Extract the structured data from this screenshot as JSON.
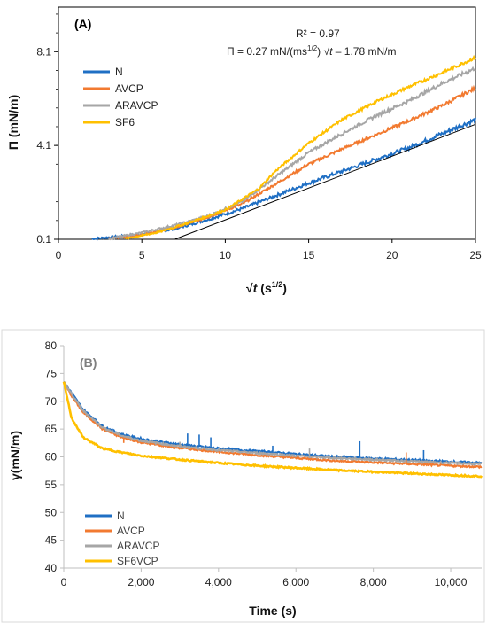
{
  "chart_data": [
    {
      "type": "line",
      "panel_label": "(A)",
      "xlabel_prefix": "√",
      "xlabel_var": "t",
      "xlabel_unit_open": " (s",
      "xlabel_unit_sup": "1/2",
      "xlabel_unit_close": ")",
      "ylabel": "Π (mN/m)",
      "xlim": [
        0,
        25
      ],
      "ylim": [
        0.1,
        10.0
      ],
      "x_ticks": [
        "0",
        "5",
        "10",
        "15",
        "20",
        "25"
      ],
      "y_ticks": [
        "0.1",
        "4.1",
        "8.1"
      ],
      "y_tick_values": [
        0.1,
        4.1,
        8.1
      ],
      "annotation_r2": "R² = 0.97",
      "annotation_fit": "Π = 0.27 mN/(ms^1/2) √t – 1.78 mN/m",
      "annotation_fit_parts": [
        "Π = 0.27 mN/(ms",
        "1/2",
        ") √",
        "t",
        " – 1.78 mN/m"
      ],
      "legend_position": "top-left",
      "fit_line": {
        "x": [
          7.0,
          25.0
        ],
        "y": [
          0.11,
          5.0
        ]
      },
      "series": [
        {
          "name": "N",
          "color": "#1f6fc4",
          "x": [
            2,
            5,
            7,
            9,
            11,
            13,
            15,
            17,
            19,
            21,
            23,
            25
          ],
          "y": [
            0.12,
            0.3,
            0.55,
            0.95,
            1.4,
            1.95,
            2.5,
            3.0,
            3.5,
            4.0,
            4.6,
            5.2
          ]
        },
        {
          "name": "AVCP",
          "color": "#f27a30",
          "x": [
            3,
            5,
            7,
            9,
            11,
            13,
            15,
            17,
            19,
            21,
            23,
            25
          ],
          "y": [
            0.12,
            0.3,
            0.6,
            1.05,
            1.6,
            2.45,
            3.3,
            3.95,
            4.55,
            5.15,
            5.8,
            6.55
          ]
        },
        {
          "name": "ARAVCP",
          "color": "#a6a6a6",
          "x": [
            3,
            5,
            7,
            9,
            11,
            13,
            15,
            17,
            19,
            21,
            23,
            25
          ],
          "y": [
            0.12,
            0.38,
            0.7,
            1.1,
            1.7,
            2.75,
            3.8,
            4.6,
            5.35,
            6.0,
            6.75,
            7.4
          ]
        },
        {
          "name": "SF6",
          "color": "#ffc000",
          "x": [
            4,
            6,
            8,
            10,
            12,
            13,
            15,
            17,
            19,
            21,
            23,
            25
          ],
          "y": [
            0.12,
            0.4,
            0.85,
            1.35,
            2.25,
            3.0,
            4.2,
            5.2,
            5.95,
            6.6,
            7.2,
            7.85
          ]
        }
      ]
    },
    {
      "type": "line",
      "panel_label": "(B)",
      "xlabel": "Time (s)",
      "ylabel": "γ(mN/m)",
      "xlim": [
        0,
        10800
      ],
      "ylim": [
        40,
        80
      ],
      "x_ticks": [
        "0",
        "2,000",
        "4,000",
        "6,000",
        "8,000",
        "10,000"
      ],
      "x_tick_values": [
        0,
        2000,
        4000,
        6000,
        8000,
        10000
      ],
      "y_ticks": [
        "40",
        "45",
        "50",
        "55",
        "60",
        "65",
        "70",
        "75",
        "80"
      ],
      "y_tick_values": [
        40,
        45,
        50,
        55,
        60,
        65,
        70,
        75,
        80
      ],
      "legend_position": "bottom-left",
      "series": [
        {
          "name": "N",
          "color": "#1f6fc4",
          "x": [
            0,
            200,
            500,
            1000,
            1500,
            2000,
            3000,
            4000,
            5000,
            6000,
            7000,
            8000,
            9000,
            10000,
            10800
          ],
          "y": [
            73.5,
            71.5,
            68.5,
            65.5,
            64.0,
            63.2,
            62.2,
            61.5,
            61.0,
            60.5,
            60.0,
            59.7,
            59.4,
            59.1,
            58.9
          ]
        },
        {
          "name": "AVCP",
          "color": "#f27a30",
          "x": [
            0,
            200,
            500,
            1000,
            1500,
            2000,
            3000,
            4000,
            5000,
            6000,
            7000,
            8000,
            9000,
            10000,
            10800
          ],
          "y": [
            73.5,
            71.0,
            68.0,
            65.0,
            63.5,
            62.6,
            61.6,
            60.9,
            60.3,
            59.8,
            59.3,
            59.0,
            58.7,
            58.4,
            58.2
          ]
        },
        {
          "name": "ARAVCP",
          "color": "#a6a6a6",
          "x": [
            0,
            200,
            500,
            1000,
            1500,
            2000,
            3000,
            4000,
            5000,
            6000,
            7000,
            8000,
            9000,
            10000,
            10800
          ],
          "y": [
            73.5,
            71.3,
            68.3,
            65.3,
            63.8,
            62.9,
            61.9,
            61.2,
            60.7,
            60.2,
            59.8,
            59.5,
            59.2,
            58.9,
            58.7
          ]
        },
        {
          "name": "SF6VCP",
          "color": "#ffc000",
          "x": [
            0,
            200,
            500,
            1000,
            1500,
            2000,
            3000,
            4000,
            5000,
            6000,
            7000,
            8000,
            9000,
            10000,
            10800
          ],
          "y": [
            73.5,
            67.0,
            63.5,
            61.5,
            60.8,
            60.2,
            59.5,
            58.9,
            58.4,
            58.0,
            57.6,
            57.3,
            57.0,
            56.7,
            56.5
          ]
        }
      ],
      "spikes": [
        {
          "series": 0,
          "x": 3200,
          "top": 64.2
        },
        {
          "series": 0,
          "x": 3500,
          "top": 64.0
        },
        {
          "series": 0,
          "x": 3800,
          "top": 63.5
        },
        {
          "series": 0,
          "x": 5400,
          "top": 62.0
        },
        {
          "series": 0,
          "x": 7650,
          "top": 62.8
        },
        {
          "series": 0,
          "x": 9300,
          "top": 61.2
        },
        {
          "series": 2,
          "x": 3000,
          "top": 62.7
        },
        {
          "series": 2,
          "x": 6350,
          "top": 61.5
        },
        {
          "series": 1,
          "x": 8850,
          "top": 60.8
        },
        {
          "series": 1,
          "x": 1550,
          "top": 62.5
        }
      ]
    }
  ]
}
